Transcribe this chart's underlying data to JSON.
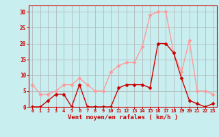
{
  "x": [
    0,
    1,
    2,
    3,
    4,
    5,
    6,
    7,
    8,
    9,
    10,
    11,
    12,
    13,
    14,
    15,
    16,
    17,
    18,
    19,
    20,
    21,
    22,
    23
  ],
  "rafales": [
    7,
    4,
    4,
    5,
    7,
    7,
    9,
    7,
    5,
    5,
    11,
    13,
    14,
    14,
    19,
    29,
    30,
    30,
    17,
    11,
    21,
    5,
    5,
    4
  ],
  "moyen": [
    0,
    0,
    2,
    4,
    4,
    0,
    7,
    0,
    0,
    0,
    0,
    6,
    7,
    7,
    7,
    6,
    20,
    20,
    17,
    9,
    2,
    1,
    0,
    1
  ],
  "color_rafales": "#ff9999",
  "color_moyen": "#cc0000",
  "bg_color": "#c8eef0",
  "grid_color": "#b0b0b0",
  "xlabel": "Vent moyen/en rafales ( km/h )",
  "ylim": [
    0,
    32
  ],
  "yticks": [
    0,
    5,
    10,
    15,
    20,
    25,
    30
  ],
  "xticks": [
    0,
    1,
    2,
    3,
    4,
    5,
    6,
    7,
    8,
    9,
    10,
    11,
    12,
    13,
    14,
    15,
    16,
    17,
    18,
    19,
    20,
    21,
    22,
    23
  ],
  "tick_color": "#cc0000",
  "label_color": "#cc0000",
  "marker": "D",
  "markersize": 2.5,
  "linewidth": 1.0
}
